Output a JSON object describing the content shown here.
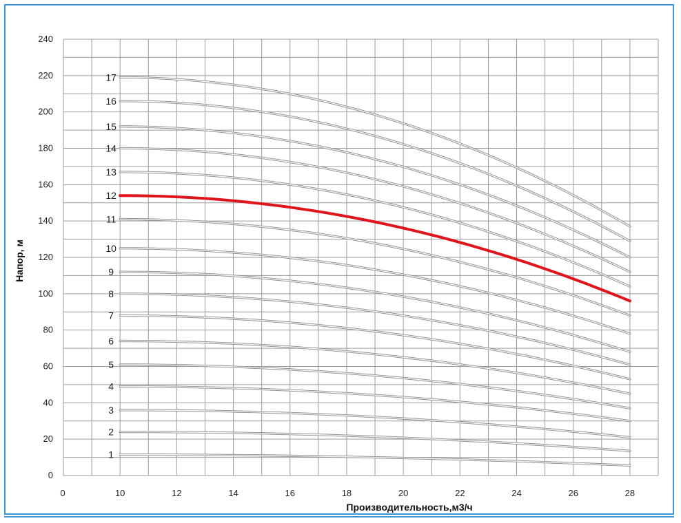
{
  "chart_data": {
    "type": "line",
    "title": "",
    "xlabel": "Производительность,м3/ч",
    "ylabel": "Напор, м",
    "xlim": [
      8,
      29
    ],
    "ylim": [
      0,
      240
    ],
    "x_tick_values": [
      10,
      12,
      14,
      16,
      18,
      20,
      22,
      24,
      26,
      28
    ],
    "x_tick_labels": [
      "10",
      "12",
      "14",
      "16",
      "18",
      "20",
      "22",
      "24",
      "26",
      "28"
    ],
    "x_origin_label": "0",
    "y_tick_values": [
      0,
      20,
      40,
      60,
      80,
      100,
      120,
      140,
      160,
      180,
      200,
      220,
      240
    ],
    "y_tick_labels": [
      "0",
      "20",
      "40",
      "60",
      "80",
      "100",
      "120",
      "140",
      "160",
      "180",
      "200",
      "220",
      "240"
    ],
    "grid": true,
    "highlight_color": "#e0141b",
    "curve_color": "#aaaaaa",
    "series": [
      {
        "label": "1",
        "highlight": false,
        "x": [
          10,
          28
        ],
        "y": [
          11.5,
          5.5
        ]
      },
      {
        "label": "2",
        "highlight": false,
        "x": [
          10,
          28
        ],
        "y": [
          24,
          13.5
        ]
      },
      {
        "label": "3",
        "highlight": false,
        "x": [
          10,
          28
        ],
        "y": [
          36,
          21
        ]
      },
      {
        "label": "4",
        "highlight": false,
        "x": [
          10,
          28
        ],
        "y": [
          49,
          30
        ]
      },
      {
        "label": "5",
        "highlight": false,
        "x": [
          10,
          28
        ],
        "y": [
          61,
          37
        ]
      },
      {
        "label": "6",
        "highlight": false,
        "x": [
          10,
          28
        ],
        "y": [
          74,
          45
        ]
      },
      {
        "label": "7",
        "highlight": false,
        "x": [
          10,
          28
        ],
        "y": [
          88,
          53
        ]
      },
      {
        "label": "8",
        "highlight": false,
        "x": [
          10,
          28
        ],
        "y": [
          100,
          61
        ]
      },
      {
        "label": "9",
        "highlight": false,
        "x": [
          10,
          28
        ],
        "y": [
          112,
          68
        ]
      },
      {
        "label": "10",
        "highlight": false,
        "x": [
          10,
          28
        ],
        "y": [
          125,
          78
        ]
      },
      {
        "label": "11",
        "highlight": false,
        "x": [
          10,
          28
        ],
        "y": [
          141,
          88
        ]
      },
      {
        "label": "12",
        "highlight": true,
        "x": [
          10,
          28
        ],
        "y": [
          154,
          96
        ]
      },
      {
        "label": "13",
        "highlight": false,
        "x": [
          10,
          28
        ],
        "y": [
          167,
          104
        ]
      },
      {
        "label": "14",
        "highlight": false,
        "x": [
          10,
          28
        ],
        "y": [
          180,
          112
        ]
      },
      {
        "label": "15",
        "highlight": false,
        "x": [
          10,
          28
        ],
        "y": [
          192,
          120
        ]
      },
      {
        "label": "16",
        "highlight": false,
        "x": [
          10,
          28
        ],
        "y": [
          206,
          129
        ]
      },
      {
        "label": "17",
        "highlight": false,
        "x": [
          10,
          28
        ],
        "y": [
          219,
          137
        ]
      }
    ]
  }
}
